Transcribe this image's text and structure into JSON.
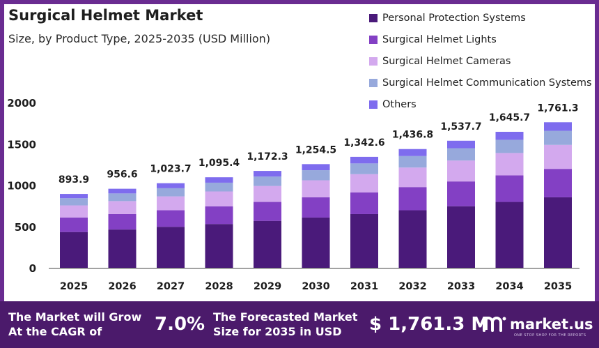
{
  "title": "Surgical Helmet Market",
  "subtitle": "Size, by Product Type, 2025-2035 (USD Million)",
  "colors": {
    "frame": "#6a2c91",
    "banner": "#4b1a6b",
    "text": "#1e1e1e"
  },
  "chart_data": {
    "type": "bar",
    "stacked": true,
    "categories": [
      "2025",
      "2026",
      "2027",
      "2028",
      "2029",
      "2030",
      "2031",
      "2032",
      "2033",
      "2034",
      "2035"
    ],
    "ylim": [
      0,
      2000
    ],
    "yticks": [
      0,
      500,
      1000,
      1500,
      2000
    ],
    "grid": false,
    "legend_position": "top-right",
    "series": [
      {
        "name": "Personal Protection Systems",
        "color": "#4a1a7a",
        "values": [
          433,
          463,
          496,
          530,
          568,
          608,
          650,
          696,
          745,
          797,
          853
        ]
      },
      {
        "name": "Surgical Helmet Lights",
        "color": "#8340c4",
        "values": [
          175,
          187,
          200,
          214,
          229,
          245,
          262,
          281,
          300,
          321,
          344
        ]
      },
      {
        "name": "Surgical Helmet Cameras",
        "color": "#d3a9ee",
        "values": [
          147,
          157,
          168,
          180,
          193,
          206,
          221,
          236,
          253,
          271,
          290
        ]
      },
      {
        "name": "Surgical Helmet Communication Systems",
        "color": "#97a9dc",
        "values": [
          87,
          93,
          99,
          106,
          114,
          122,
          130,
          139,
          149,
          160,
          171
        ]
      },
      {
        "name": "Others",
        "color": "#7e6cee",
        "values": [
          51.9,
          56.6,
          60.7,
          65.4,
          68.3,
          73.5,
          79.6,
          84.8,
          90.7,
          96.7,
          103.3
        ]
      }
    ],
    "totals": [
      "893.9",
      "956.6",
      "1,023.7",
      "1,095.4",
      "1,172.3",
      "1,254.5",
      "1,342.6",
      "1,436.8",
      "1,537.7",
      "1,645.7",
      "1,761.3"
    ]
  },
  "banner": {
    "cagr_label_line1": "The Market will Grow",
    "cagr_label_line2": "At the CAGR of",
    "cagr_value": "7.0%",
    "forecast_label_line1": "The Forecasted Market",
    "forecast_label_line2": "Size for 2035 in USD",
    "forecast_value": "$ 1,761.3 M",
    "brand": "market.us",
    "brand_tagline": "ONE STOP SHOP FOR THE REPORTS"
  }
}
